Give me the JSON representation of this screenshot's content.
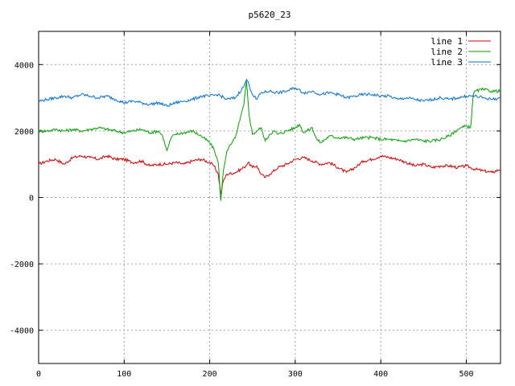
{
  "chart_data": {
    "type": "line",
    "title": "p5620_23",
    "xlabel": "",
    "ylabel": "",
    "xlim": [
      0,
      540
    ],
    "ylim": [
      -5000,
      5000
    ],
    "xticks": [
      0,
      100,
      200,
      300,
      400,
      500
    ],
    "yticks": [
      -4000,
      -2000,
      0,
      2000,
      4000
    ],
    "grid": true,
    "legend_position": "top-right",
    "series": [
      {
        "name": "line 1",
        "color": "#d00000",
        "x": [
          0,
          10,
          20,
          30,
          40,
          50,
          60,
          70,
          80,
          90,
          100,
          110,
          120,
          130,
          140,
          150,
          160,
          170,
          180,
          190,
          200,
          205,
          210,
          213,
          216,
          220,
          230,
          240,
          245,
          250,
          255,
          260,
          265,
          270,
          280,
          290,
          300,
          310,
          320,
          330,
          340,
          350,
          360,
          370,
          380,
          390,
          400,
          410,
          420,
          430,
          440,
          450,
          460,
          470,
          480,
          490,
          500,
          510,
          520,
          530,
          540
        ],
        "values": [
          1000,
          1100,
          1150,
          1000,
          1200,
          1250,
          1200,
          1150,
          1250,
          1150,
          1150,
          1050,
          1100,
          950,
          1000,
          1000,
          1050,
          1000,
          1100,
          1150,
          1050,
          950,
          700,
          100,
          500,
          700,
          750,
          900,
          1050,
          900,
          950,
          700,
          600,
          700,
          900,
          1000,
          1150,
          1200,
          1100,
          1000,
          1050,
          900,
          750,
          900,
          1100,
          1150,
          1250,
          1200,
          1150,
          1050,
          950,
          1000,
          900,
          950,
          950,
          900,
          950,
          850,
          800,
          750,
          850
        ]
      },
      {
        "name": "line 2",
        "color": "#00a000",
        "x": [
          0,
          10,
          20,
          30,
          40,
          50,
          60,
          70,
          80,
          90,
          100,
          110,
          120,
          130,
          140,
          145,
          150,
          155,
          160,
          170,
          180,
          190,
          200,
          205,
          210,
          213,
          216,
          220,
          225,
          230,
          235,
          240,
          243,
          246,
          250,
          255,
          260,
          265,
          270,
          275,
          280,
          290,
          300,
          305,
          310,
          320,
          325,
          330,
          340,
          350,
          360,
          370,
          380,
          390,
          400,
          410,
          420,
          430,
          440,
          450,
          460,
          470,
          480,
          490,
          500,
          505,
          508,
          510,
          520,
          530,
          540
        ],
        "values": [
          2000,
          2000,
          2050,
          2000,
          2050,
          2000,
          2050,
          2100,
          2050,
          2000,
          1950,
          2000,
          2050,
          1950,
          2000,
          1850,
          1400,
          1800,
          1900,
          1950,
          2000,
          1850,
          1650,
          1450,
          1050,
          -100,
          800,
          1400,
          1600,
          1800,
          2300,
          2800,
          3500,
          2500,
          1900,
          2000,
          2100,
          1700,
          1900,
          2000,
          1900,
          2000,
          2100,
          2200,
          1950,
          2100,
          1750,
          1650,
          1850,
          1800,
          1800,
          1750,
          1800,
          1800,
          1750,
          1750,
          1700,
          1700,
          1750,
          1700,
          1700,
          1750,
          1850,
          2050,
          2150,
          2100,
          3050,
          3200,
          3250,
          3200,
          3200
        ]
      },
      {
        "name": "line 3",
        "color": "#0070d0",
        "x": [
          0,
          10,
          20,
          30,
          40,
          50,
          60,
          70,
          80,
          90,
          100,
          110,
          120,
          130,
          140,
          150,
          160,
          170,
          180,
          190,
          200,
          210,
          220,
          230,
          240,
          243,
          246,
          250,
          255,
          260,
          270,
          280,
          290,
          300,
          310,
          320,
          330,
          340,
          350,
          360,
          370,
          380,
          390,
          400,
          410,
          420,
          430,
          440,
          450,
          460,
          470,
          480,
          490,
          500,
          510,
          520,
          530,
          540
        ],
        "values": [
          2900,
          2950,
          3000,
          3050,
          3000,
          3100,
          3050,
          3000,
          3050,
          2950,
          2850,
          2900,
          2850,
          2800,
          2850,
          2750,
          2850,
          2900,
          2950,
          3050,
          3050,
          3100,
          2950,
          3000,
          3350,
          3550,
          3400,
          3100,
          2950,
          3150,
          3200,
          3150,
          3200,
          3300,
          3150,
          3200,
          3100,
          3150,
          3100,
          3000,
          3050,
          3100,
          3100,
          3050,
          3050,
          2950,
          3000,
          2950,
          2900,
          2950,
          3000,
          2950,
          3000,
          3050,
          3050,
          3000,
          2950,
          3000
        ]
      }
    ]
  }
}
